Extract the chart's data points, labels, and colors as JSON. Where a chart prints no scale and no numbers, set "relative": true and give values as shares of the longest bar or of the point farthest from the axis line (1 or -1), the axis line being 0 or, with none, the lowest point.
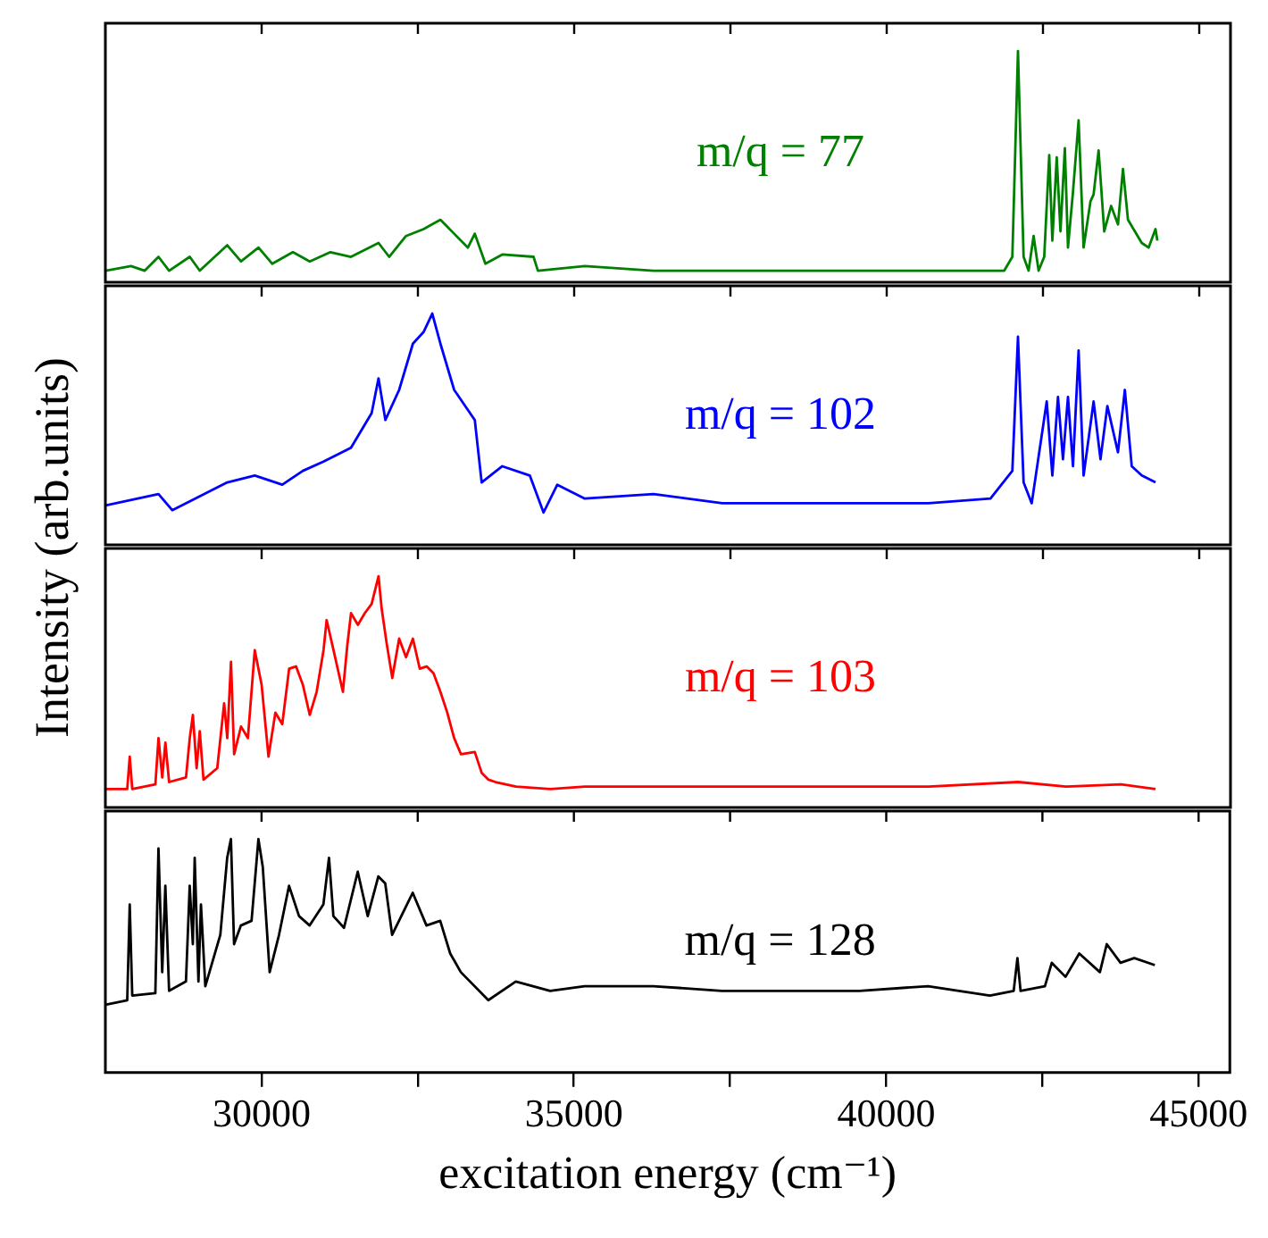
{
  "chart_data": [
    {
      "type": "line",
      "relative": true,
      "ylabel": "Intensity (arb.units)",
      "xlim": [
        27500,
        45500
      ],
      "xticks": [
        30000,
        {
          "value": 32500,
          "label": null
        },
        35000,
        {
          "value": 37500,
          "label": null
        },
        40000,
        {
          "value": 42500,
          "label": null
        },
        45000
      ],
      "tick_labels": false,
      "marker": "none",
      "series": [
        {
          "name": "m/q = 77",
          "color": "#008000",
          "x": [
            27500,
            27910,
            28130,
            28350,
            28520,
            28850,
            29010,
            29450,
            29670,
            29950,
            30170,
            30500,
            30770,
            31100,
            31430,
            31870,
            32040,
            32310,
            32590,
            32860,
            33080,
            33300,
            33410,
            33580,
            33850,
            34350,
            34420,
            35170,
            36270,
            37370,
            38470,
            39570,
            40670,
            41110,
            41880,
            42010,
            42100,
            42190,
            42270,
            42350,
            42430,
            42520,
            42600,
            42650,
            42720,
            42780,
            42850,
            42900,
            42980,
            43070,
            43150,
            43260,
            43310,
            43390,
            43480,
            43590,
            43700,
            43780,
            43860,
            43970,
            44080,
            44190,
            44300,
            44330
          ],
          "values": [
            0.05,
            0.07,
            0.05,
            0.11,
            0.05,
            0.11,
            0.05,
            0.16,
            0.09,
            0.15,
            0.08,
            0.13,
            0.09,
            0.13,
            0.11,
            0.17,
            0.11,
            0.2,
            0.23,
            0.27,
            0.21,
            0.15,
            0.21,
            0.08,
            0.12,
            0.11,
            0.05,
            0.07,
            0.05,
            0.05,
            0.05,
            0.05,
            0.05,
            0.05,
            0.05,
            0.11,
            1,
            0.11,
            0.05,
            0.2,
            0.05,
            0.11,
            0.55,
            0.18,
            0.54,
            0.22,
            0.58,
            0.15,
            0.39,
            0.7,
            0.15,
            0.35,
            0.38,
            0.57,
            0.22,
            0.33,
            0.25,
            0.49,
            0.27,
            0.22,
            0.17,
            0.15,
            0.23,
            0.18
          ]
        }
      ]
    },
    {
      "type": "line",
      "relative": true,
      "xlim": [
        27500,
        45500
      ],
      "xticks": [
        30000,
        {
          "value": 32500,
          "label": null
        },
        35000,
        {
          "value": 37500,
          "label": null
        },
        40000,
        {
          "value": 42500,
          "label": null
        },
        45000
      ],
      "tick_labels": false,
      "marker": "none",
      "series": [
        {
          "name": "m/q = 102",
          "color": "#0000ff",
          "x": [
            27500,
            28350,
            28570,
            29450,
            29890,
            30330,
            30660,
            30990,
            31430,
            31760,
            31870,
            31980,
            32200,
            32420,
            32590,
            32730,
            32860,
            33080,
            33410,
            33520,
            33850,
            34290,
            34510,
            34730,
            35170,
            36270,
            37370,
            38470,
            39570,
            40670,
            41660,
            42010,
            42100,
            42190,
            42320,
            42560,
            42650,
            42740,
            42820,
            42900,
            42980,
            43070,
            43150,
            43310,
            43420,
            43530,
            43700,
            43810,
            43920,
            44080,
            44300
          ],
          "values": [
            0.17,
            0.22,
            0.15,
            0.27,
            0.3,
            0.26,
            0.32,
            0.36,
            0.42,
            0.57,
            0.72,
            0.54,
            0.67,
            0.87,
            0.92,
            1,
            0.87,
            0.67,
            0.54,
            0.27,
            0.34,
            0.3,
            0.14,
            0.26,
            0.2,
            0.22,
            0.18,
            0.18,
            0.18,
            0.18,
            0.2,
            0.32,
            0.9,
            0.27,
            0.18,
            0.62,
            0.3,
            0.64,
            0.37,
            0.64,
            0.34,
            0.84,
            0.3,
            0.62,
            0.37,
            0.6,
            0.4,
            0.67,
            0.34,
            0.3,
            0.27
          ]
        }
      ]
    },
    {
      "type": "line",
      "relative": true,
      "xlim": [
        27500,
        45500
      ],
      "xticks": [
        30000,
        {
          "value": 32500,
          "label": null
        },
        35000,
        {
          "value": 37500,
          "label": null
        },
        40000,
        {
          "value": 42500,
          "label": null
        },
        45000
      ],
      "tick_labels": false,
      "marker": "none",
      "series": [
        {
          "name": "m/q = 103",
          "color": "#ff0000",
          "x": [
            27500,
            27850,
            27890,
            27930,
            28300,
            28350,
            28410,
            28460,
            28520,
            28790,
            28850,
            28900,
            28960,
            29010,
            29070,
            29290,
            29400,
            29450,
            29510,
            29560,
            29670,
            29780,
            29890,
            30000,
            30110,
            30220,
            30330,
            30440,
            30550,
            30660,
            30770,
            30880,
            30990,
            31040,
            31150,
            31300,
            31370,
            31430,
            31540,
            31650,
            31760,
            31870,
            31920,
            32000,
            32090,
            32200,
            32310,
            32420,
            32530,
            32640,
            32750,
            32860,
            32970,
            33080,
            33190,
            33410,
            33520,
            33630,
            33740,
            34070,
            34620,
            35170,
            36270,
            37370,
            38470,
            39570,
            40670,
            42100,
            42870,
            43750,
            44300
          ],
          "values": [
            0.08,
            0.08,
            0.22,
            0.08,
            0.1,
            0.3,
            0.13,
            0.28,
            0.11,
            0.13,
            0.3,
            0.4,
            0.17,
            0.33,
            0.12,
            0.17,
            0.45,
            0.3,
            0.63,
            0.23,
            0.35,
            0.3,
            0.68,
            0.53,
            0.22,
            0.41,
            0.36,
            0.6,
            0.61,
            0.53,
            0.4,
            0.5,
            0.68,
            0.81,
            0.68,
            0.5,
            0.7,
            0.84,
            0.79,
            0.84,
            0.88,
            1,
            0.86,
            0.71,
            0.56,
            0.73,
            0.65,
            0.73,
            0.6,
            0.61,
            0.58,
            0.5,
            0.41,
            0.3,
            0.23,
            0.24,
            0.15,
            0.12,
            0.11,
            0.09,
            0.08,
            0.09,
            0.09,
            0.09,
            0.09,
            0.09,
            0.09,
            0.11,
            0.09,
            0.1,
            0.08
          ]
        }
      ]
    },
    {
      "type": "line",
      "relative": true,
      "xlabel": "excitation energy (cm⁻¹)",
      "xlim": [
        27500,
        45500
      ],
      "xticks": [
        30000,
        {
          "value": 32500,
          "label": null
        },
        35000,
        {
          "value": 37500,
          "label": null
        },
        40000,
        {
          "value": 42500,
          "label": null
        },
        45000
      ],
      "tick_labels": "x",
      "marker": "none",
      "series": [
        {
          "name": "m/q = 128",
          "color": "#000000",
          "x": [
            27500,
            27850,
            27890,
            27930,
            28300,
            28350,
            28410,
            28460,
            28520,
            28790,
            28850,
            28900,
            28930,
            28990,
            29030,
            29100,
            29340,
            29450,
            29510,
            29560,
            29670,
            29840,
            29950,
            30020,
            30130,
            30280,
            30440,
            30600,
            30770,
            30990,
            31080,
            31150,
            31320,
            31540,
            31700,
            31870,
            31980,
            32090,
            32420,
            32640,
            32860,
            33020,
            33190,
            33630,
            34070,
            34620,
            35170,
            36270,
            37370,
            38470,
            39570,
            40670,
            41660,
            42040,
            42100,
            42150,
            42540,
            42650,
            42870,
            43090,
            43420,
            43530,
            43750,
            43970,
            44300
          ],
          "values": [
            0.29,
            0.31,
            0.72,
            0.33,
            0.34,
            0.96,
            0.43,
            0.8,
            0.35,
            0.39,
            0.8,
            0.55,
            0.92,
            0.39,
            0.72,
            0.37,
            0.59,
            0.92,
            1,
            0.55,
            0.63,
            0.65,
            1,
            0.88,
            0.43,
            0.59,
            0.8,
            0.67,
            0.63,
            0.72,
            0.92,
            0.67,
            0.62,
            0.86,
            0.67,
            0.84,
            0.81,
            0.59,
            0.77,
            0.63,
            0.65,
            0.51,
            0.43,
            0.31,
            0.39,
            0.35,
            0.37,
            0.37,
            0.35,
            0.35,
            0.35,
            0.37,
            0.33,
            0.35,
            0.49,
            0.35,
            0.37,
            0.47,
            0.41,
            0.51,
            0.43,
            0.55,
            0.47,
            0.49,
            0.46
          ]
        }
      ]
    }
  ]
}
